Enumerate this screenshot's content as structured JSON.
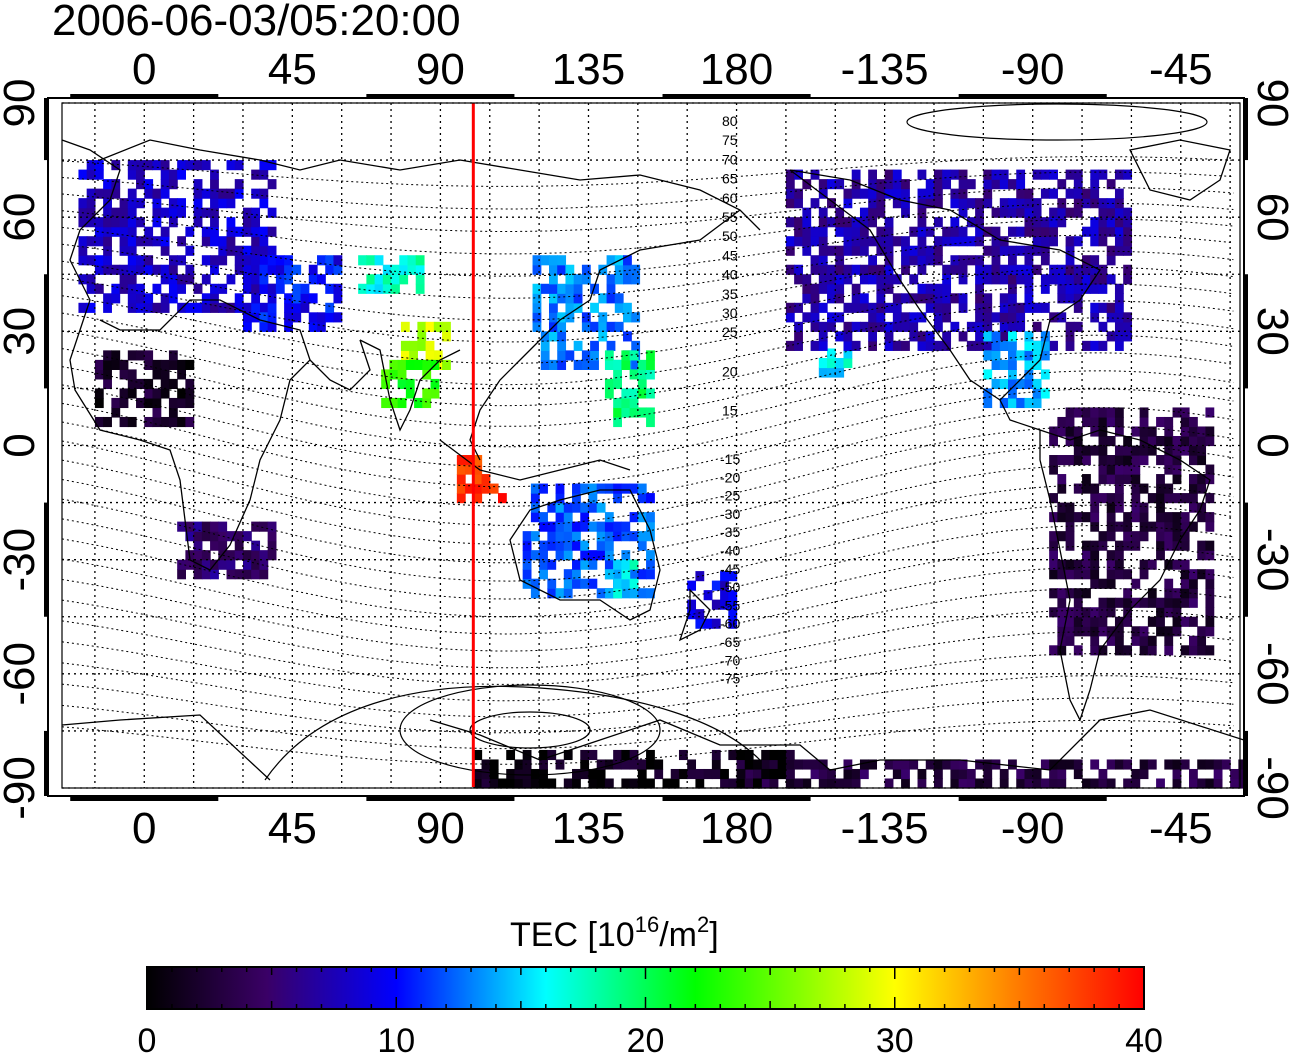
{
  "timestamp": "2006-06-03/05:20:00",
  "axes": {
    "x_ticks_top": [
      "0",
      "45",
      "90",
      "135",
      "180",
      "-135",
      "-90",
      "-45"
    ],
    "x_ticks_bottom": [
      "0",
      "45",
      "90",
      "135",
      "180",
      "-135",
      "-90",
      "-45"
    ],
    "y_ticks": [
      "90",
      "60",
      "30",
      "0",
      "-30",
      "-60",
      "-90"
    ],
    "lon_tick_values": [
      0,
      45,
      90,
      135,
      180,
      225,
      270,
      315
    ],
    "lat_tick_values": [
      90,
      60,
      30,
      0,
      -30,
      -60,
      -90
    ],
    "lon_range": [
      -25,
      333
    ],
    "lat_range": [
      -90,
      90
    ]
  },
  "terminator_line": {
    "longitude": 100,
    "color": "#ff0000"
  },
  "magnetic_latitude_labels": [
    "80",
    "75",
    "70",
    "65",
    "60",
    "55",
    "50",
    "45",
    "40",
    "35",
    "30",
    "25",
    "20",
    "15",
    "-15",
    "-20",
    "-25",
    "-30",
    "-35",
    "-40",
    "-45",
    "-50",
    "-55",
    "-60",
    "-65",
    "-70",
    "-75"
  ],
  "colorbar": {
    "label_main": "TEC  [10",
    "label_sup1": "16",
    "label_mid": "/m",
    "label_sup2": "2",
    "label_end": "]",
    "ticks": [
      "0",
      "10",
      "20",
      "30",
      "40"
    ],
    "tick_values": [
      0,
      10,
      20,
      30,
      40
    ],
    "min": 0,
    "max": 40,
    "colormap_stops": [
      "#000000",
      "#3a0066",
      "#0000ff",
      "#00ffff",
      "#00ff00",
      "#ffff00",
      "#ff7f00",
      "#ff0000"
    ]
  },
  "chart_data": {
    "type": "heatmap",
    "title": "2006-06-03/05:20:00",
    "xlabel": "",
    "ylabel": "",
    "value_label": "TEC [10^16/m^2]",
    "xlim": [
      -25,
      333
    ],
    "ylim": [
      -90,
      90
    ],
    "vlim": [
      0,
      40
    ],
    "grid": true,
    "regions": [
      {
        "lon": [
          -20,
          40
        ],
        "lat": [
          35,
          75
        ],
        "tec": 8
      },
      {
        "lon": [
          30,
          60
        ],
        "lat": [
          30,
          50
        ],
        "tec": 10
      },
      {
        "lon": [
          65,
          85
        ],
        "lat": [
          40,
          50
        ],
        "tec": 17
      },
      {
        "lon": [
          78,
          92
        ],
        "lat": [
          20,
          32
        ],
        "tec": 28
      },
      {
        "lon": [
          72,
          88
        ],
        "lat": [
          10,
          22
        ],
        "tec": 23
      },
      {
        "lon": [
          95,
          110
        ],
        "lat": [
          -15,
          -3
        ],
        "tec": 38
      },
      {
        "lon": [
          118,
          150
        ],
        "lat": [
          20,
          48
        ],
        "tec": 13
      },
      {
        "lon": [
          140,
          155
        ],
        "lat": [
          5,
          25
        ],
        "tec": 19
      },
      {
        "lon": [
          115,
          155
        ],
        "lat": [
          -40,
          -10
        ],
        "tec": 12
      },
      {
        "lon": [
          140,
          150
        ],
        "lat": [
          -40,
          -30
        ],
        "tec": 16
      },
      {
        "lon": [
          165,
          178
        ],
        "lat": [
          -48,
          -35
        ],
        "tec": 9
      },
      {
        "lon": [
          205,
          215
        ],
        "lat": [
          18,
          25
        ],
        "tec": 16
      },
      {
        "lon": [
          195,
          300
        ],
        "lat": [
          25,
          72
        ],
        "tec": 7
      },
      {
        "lon": [
          255,
          275
        ],
        "lat": [
          10,
          28
        ],
        "tec": 14
      },
      {
        "lon": [
          275,
          325
        ],
        "lat": [
          -55,
          10
        ],
        "tec": 3
      },
      {
        "lon": [
          -15,
          15
        ],
        "lat": [
          5,
          25
        ],
        "tec": 2
      },
      {
        "lon": [
          10,
          40
        ],
        "lat": [
          -35,
          -20
        ],
        "tec": 5
      },
      {
        "lon": [
          180,
          333
        ],
        "lat": [
          -90,
          -83
        ],
        "tec": 3
      },
      {
        "lon": [
          100,
          200
        ],
        "lat": [
          -90,
          -80
        ],
        "tec": 1
      }
    ]
  }
}
